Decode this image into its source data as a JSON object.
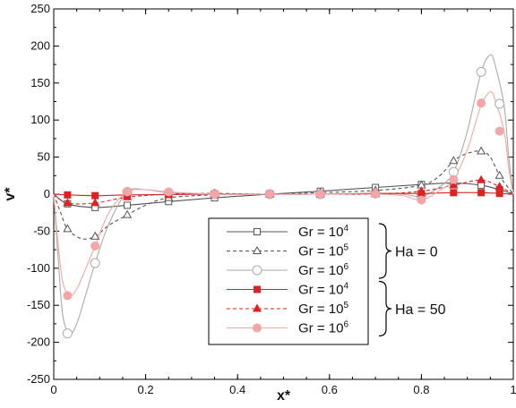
{
  "chart_data": {
    "type": "line",
    "title": "",
    "xlabel": "x*",
    "ylabel": "v*",
    "xlim": [
      0,
      1
    ],
    "ylim": [
      -250,
      250
    ],
    "x_ticks": [
      0,
      0.2,
      0.4,
      0.6,
      0.8,
      1
    ],
    "x_tick_labels": [
      "0",
      "0.2",
      "0.4",
      "0.6",
      "0.8",
      "1"
    ],
    "y_ticks": [
      -250,
      -200,
      -150,
      -100,
      -50,
      0,
      50,
      100,
      150,
      200,
      250
    ],
    "y_tick_labels": [
      "-250",
      "-200",
      "-150",
      "-100",
      "-50",
      "0",
      "50",
      "100",
      "150",
      "200",
      "250"
    ],
    "grid": false,
    "legend_position": "bottom-right",
    "legend_groups": [
      {
        "label": "Ha = 0",
        "series": [
          0,
          1,
          2
        ]
      },
      {
        "label": "Ha = 50",
        "series": [
          3,
          4,
          5
        ]
      }
    ],
    "series": [
      {
        "name": "Gr = 10^4",
        "legend_base": "Gr = 10",
        "legend_exp": "4",
        "color": "#555555",
        "dash": "solid",
        "marker": "square",
        "filled": false,
        "x": [
          0,
          0.03,
          0.09,
          0.16,
          0.25,
          0.35,
          0.47,
          0.58,
          0.7,
          0.8,
          0.87,
          0.93,
          0.97,
          1
        ],
        "y": [
          0,
          -13,
          -18,
          -15,
          -10,
          -5,
          0,
          4,
          9,
          13,
          15,
          12,
          6,
          0
        ],
        "markers_x": [
          0.03,
          0.09,
          0.16,
          0.25,
          0.35,
          0.47,
          0.58,
          0.7,
          0.8,
          0.87,
          0.93,
          0.97
        ],
        "markers_y": [
          -13,
          -18,
          -15,
          -10,
          -5,
          0,
          4,
          9,
          13,
          15,
          12,
          6
        ]
      },
      {
        "name": "Gr = 10^5",
        "legend_base": "Gr = 10",
        "legend_exp": "5",
        "color": "#555555",
        "dash": "dashed",
        "marker": "triangle",
        "filled": false,
        "x": [
          0,
          0.015,
          0.03,
          0.06,
          0.09,
          0.12,
          0.16,
          0.2,
          0.25,
          0.35,
          0.47,
          0.58,
          0.7,
          0.8,
          0.84,
          0.87,
          0.9,
          0.93,
          0.95,
          0.97,
          0.99,
          1
        ],
        "y": [
          0,
          -25,
          -47,
          -60,
          -57,
          -42,
          -28,
          -15,
          -5,
          -1,
          0,
          2,
          5,
          12,
          25,
          45,
          55,
          58,
          50,
          25,
          8,
          0
        ],
        "markers_x": [
          0.03,
          0.09,
          0.16,
          0.25,
          0.35,
          0.47,
          0.58,
          0.7,
          0.8,
          0.87,
          0.93,
          0.97
        ],
        "markers_y": [
          -47,
          -57,
          -28,
          -5,
          -1,
          0,
          2,
          5,
          12,
          45,
          58,
          25
        ]
      },
      {
        "name": "Gr = 10^6",
        "legend_base": "Gr = 10",
        "legend_exp": "6",
        "color": "#aaaaaa",
        "dash": "solid",
        "marker": "circle",
        "filled": false,
        "x": [
          0,
          0.01,
          0.02,
          0.035,
          0.05,
          0.07,
          0.09,
          0.12,
          0.16,
          0.2,
          0.25,
          0.35,
          0.47,
          0.58,
          0.7,
          0.76,
          0.8,
          0.84,
          0.87,
          0.9,
          0.93,
          0.95,
          0.96,
          0.98,
          0.99,
          1
        ],
        "y": [
          0,
          -90,
          -165,
          -188,
          -175,
          -135,
          -93,
          -40,
          3,
          6,
          2,
          0,
          0,
          0,
          1,
          0,
          -3,
          10,
          30,
          85,
          165,
          188,
          175,
          120,
          50,
          0
        ],
        "markers_x": [
          0.03,
          0.09,
          0.16,
          0.25,
          0.35,
          0.47,
          0.58,
          0.7,
          0.8,
          0.87,
          0.93,
          0.97
        ],
        "markers_y": [
          -188,
          -93,
          3,
          2,
          0,
          0,
          0,
          1,
          -3,
          30,
          165,
          122
        ]
      },
      {
        "name": "Gr = 10^4",
        "legend_base": "Gr = 10",
        "legend_exp": "4",
        "color": "#dd2222",
        "dash": "solid",
        "marker": "square",
        "filled": true,
        "x": [
          0,
          0.03,
          0.09,
          0.16,
          0.25,
          0.35,
          0.47,
          0.58,
          0.7,
          0.8,
          0.87,
          0.93,
          0.97,
          1
        ],
        "y": [
          0,
          -1,
          -2,
          -1,
          -0.5,
          0,
          0,
          0,
          1,
          1,
          2,
          2,
          1,
          0
        ],
        "markers_x": [
          0.03,
          0.09,
          0.16,
          0.25,
          0.35,
          0.47,
          0.58,
          0.7,
          0.8,
          0.87,
          0.93,
          0.97
        ],
        "markers_y": [
          -1,
          -2,
          -1,
          -0.5,
          0,
          0,
          0,
          1,
          1,
          2,
          2,
          1
        ]
      },
      {
        "name": "Gr = 10^5",
        "legend_base": "Gr = 10",
        "legend_exp": "5",
        "color": "#dd2222",
        "dash": "dashed",
        "marker": "triangle",
        "filled": true,
        "x": [
          0,
          0.03,
          0.09,
          0.16,
          0.25,
          0.35,
          0.47,
          0.58,
          0.7,
          0.8,
          0.87,
          0.93,
          0.97,
          1
        ],
        "y": [
          0,
          -12,
          -12,
          -4,
          0,
          1,
          0,
          0,
          0,
          4,
          12,
          19,
          10,
          0
        ],
        "markers_x": [
          0.03,
          0.09,
          0.16,
          0.25,
          0.35,
          0.47,
          0.58,
          0.7,
          0.8,
          0.87,
          0.93,
          0.97
        ],
        "markers_y": [
          -12,
          -12,
          -4,
          0,
          1,
          0,
          0,
          0,
          4,
          12,
          19,
          10
        ]
      },
      {
        "name": "Gr = 10^6",
        "legend_base": "Gr = 10",
        "legend_exp": "6",
        "color": "#f4a6a6",
        "dash": "solid",
        "marker": "circle",
        "filled": true,
        "x": [
          0,
          0.01,
          0.02,
          0.035,
          0.05,
          0.07,
          0.09,
          0.12,
          0.16,
          0.2,
          0.25,
          0.35,
          0.47,
          0.58,
          0.7,
          0.76,
          0.8,
          0.84,
          0.87,
          0.9,
          0.93,
          0.95,
          0.96,
          0.98,
          0.99,
          1
        ],
        "y": [
          0,
          -70,
          -120,
          -137,
          -128,
          -100,
          -70,
          -25,
          3,
          6,
          3,
          0,
          0,
          0,
          0,
          -2,
          -8,
          5,
          20,
          60,
          120,
          138,
          128,
          85,
          35,
          0
        ],
        "markers_x": [
          0.03,
          0.09,
          0.16,
          0.25,
          0.35,
          0.47,
          0.58,
          0.7,
          0.8,
          0.87,
          0.93,
          0.97
        ],
        "markers_y": [
          -137,
          -70,
          3,
          3,
          0,
          0,
          0,
          0,
          -8,
          20,
          123,
          85
        ]
      }
    ]
  }
}
